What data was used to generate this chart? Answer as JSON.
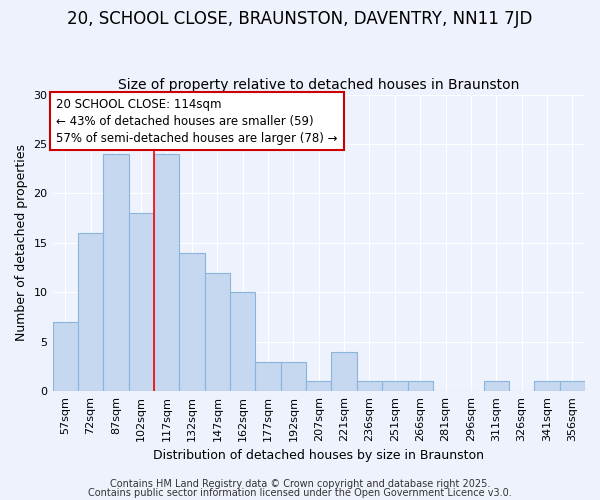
{
  "title": "20, SCHOOL CLOSE, BRAUNSTON, DAVENTRY, NN11 7JD",
  "subtitle": "Size of property relative to detached houses in Braunston",
  "xlabel": "Distribution of detached houses by size in Braunston",
  "ylabel": "Number of detached properties",
  "categories": [
    "57sqm",
    "72sqm",
    "87sqm",
    "102sqm",
    "117sqm",
    "132sqm",
    "147sqm",
    "162sqm",
    "177sqm",
    "192sqm",
    "207sqm",
    "221sqm",
    "236sqm",
    "251sqm",
    "266sqm",
    "281sqm",
    "296sqm",
    "311sqm",
    "326sqm",
    "341sqm",
    "356sqm"
  ],
  "values": [
    7,
    16,
    24,
    18,
    24,
    14,
    12,
    10,
    3,
    3,
    1,
    4,
    1,
    1,
    1,
    0,
    0,
    1,
    0,
    1,
    1
  ],
  "bar_color": "#C5D8F0",
  "bar_edge_color": "#8AB4DC",
  "background_color": "#EEF2FC",
  "grid_color": "#FFFFFF",
  "red_line_x": 3.5,
  "annotation_text": "20 SCHOOL CLOSE: 114sqm\n← 43% of detached houses are smaller (59)\n57% of semi-detached houses are larger (78) →",
  "annotation_box_color": "#FFFFFF",
  "annotation_box_edge": "#CC0000",
  "ylim": [
    0,
    30
  ],
  "yticks": [
    0,
    5,
    10,
    15,
    20,
    25,
    30
  ],
  "footer1": "Contains HM Land Registry data © Crown copyright and database right 2025.",
  "footer2": "Contains public sector information licensed under the Open Government Licence v3.0.",
  "title_fontsize": 12,
  "subtitle_fontsize": 10,
  "xlabel_fontsize": 9,
  "ylabel_fontsize": 9,
  "tick_fontsize": 8,
  "annotation_fontsize": 8.5,
  "footer_fontsize": 7
}
